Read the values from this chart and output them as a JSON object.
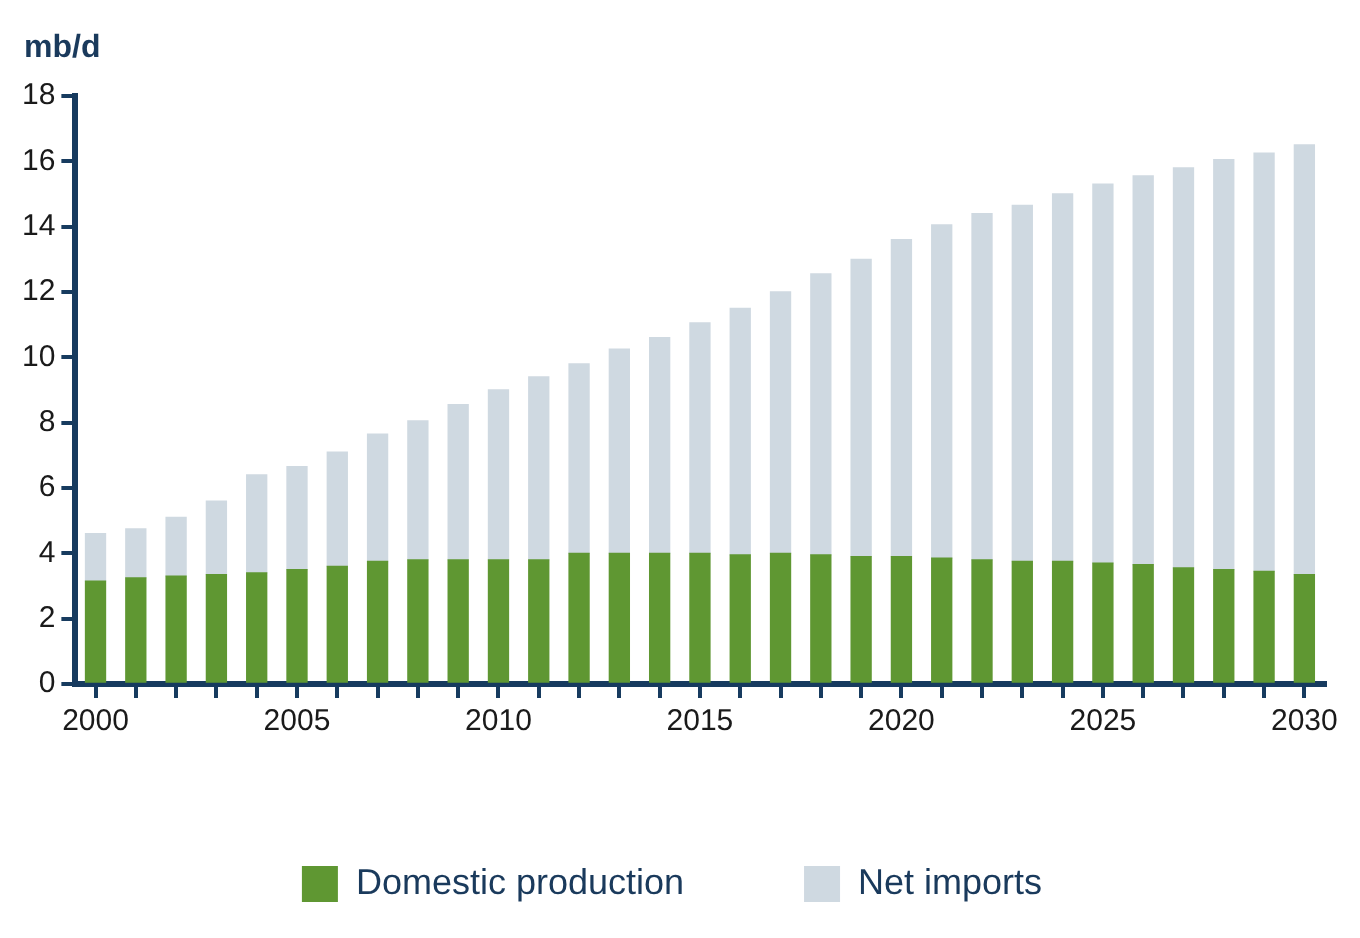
{
  "chart_data": {
    "type": "bar",
    "stacked": true,
    "ylabel": "mb/d",
    "x": [
      2000,
      2001,
      2002,
      2003,
      2004,
      2005,
      2006,
      2007,
      2008,
      2009,
      2010,
      2011,
      2012,
      2013,
      2014,
      2015,
      2016,
      2017,
      2018,
      2019,
      2020,
      2021,
      2022,
      2023,
      2024,
      2025,
      2026,
      2027,
      2028,
      2029,
      2030
    ],
    "series": [
      {
        "name": "Domestic production",
        "color": "#5f9732",
        "values": [
          3.15,
          3.25,
          3.3,
          3.35,
          3.4,
          3.5,
          3.6,
          3.75,
          3.8,
          3.8,
          3.8,
          3.8,
          4.0,
          4.0,
          4.0,
          4.0,
          3.95,
          4.0,
          3.95,
          3.9,
          3.9,
          3.85,
          3.8,
          3.75,
          3.75,
          3.7,
          3.65,
          3.55,
          3.5,
          3.45,
          3.35
        ]
      },
      {
        "name": "Net imports",
        "color": "#cfd9e1",
        "values": [
          1.45,
          1.5,
          1.8,
          2.25,
          3.0,
          3.15,
          3.5,
          3.9,
          4.25,
          4.75,
          5.2,
          5.6,
          5.8,
          6.25,
          6.6,
          7.05,
          7.55,
          8.0,
          8.6,
          9.1,
          9.7,
          10.2,
          10.6,
          10.9,
          11.25,
          11.6,
          11.9,
          12.25,
          12.55,
          12.8,
          13.15
        ]
      }
    ],
    "xlim": [
      1999.5,
      2030.5
    ],
    "xticks": [
      2000,
      {
        "value": 2001,
        "label": null
      },
      {
        "value": 2002,
        "label": null
      },
      {
        "value": 2003,
        "label": null
      },
      {
        "value": 2004,
        "label": null
      },
      2005,
      {
        "value": 2006,
        "label": null
      },
      {
        "value": 2007,
        "label": null
      },
      {
        "value": 2008,
        "label": null
      },
      {
        "value": 2009,
        "label": null
      },
      2010,
      {
        "value": 2011,
        "label": null
      },
      {
        "value": 2012,
        "label": null
      },
      {
        "value": 2013,
        "label": null
      },
      {
        "value": 2014,
        "label": null
      },
      2015,
      {
        "value": 2016,
        "label": null
      },
      {
        "value": 2017,
        "label": null
      },
      {
        "value": 2018,
        "label": null
      },
      {
        "value": 2019,
        "label": null
      },
      2020,
      {
        "value": 2021,
        "label": null
      },
      {
        "value": 2022,
        "label": null
      },
      {
        "value": 2023,
        "label": null
      },
      {
        "value": 2024,
        "label": null
      },
      2025,
      {
        "value": 2026,
        "label": null
      },
      {
        "value": 2027,
        "label": null
      },
      {
        "value": 2028,
        "label": null
      },
      {
        "value": 2029,
        "label": null
      },
      2030
    ],
    "ylim": [
      0,
      18
    ],
    "yticks": [
      0,
      2,
      4,
      6,
      8,
      10,
      12,
      14,
      16,
      18
    ],
    "grid": false,
    "legend": "bottom"
  }
}
